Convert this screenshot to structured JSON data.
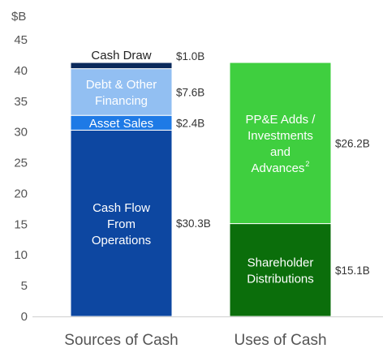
{
  "chart_data": {
    "type": "bar",
    "stacked": true,
    "unit_label": "$B",
    "ylim": [
      0,
      45
    ],
    "yticks": [
      0,
      5,
      10,
      15,
      20,
      25,
      30,
      35,
      40,
      45
    ],
    "grid": false,
    "categories": [
      "Sources of Cash",
      "Uses of Cash"
    ],
    "stacks": [
      {
        "category": "Sources of Cash",
        "segments": [
          {
            "label": [
              "Cash Flow",
              "From",
              "Operations"
            ],
            "value": 30.3,
            "value_label": "$30.3B",
            "color": "#0d47a1",
            "text_color": "#ffffff"
          },
          {
            "label": [
              "Asset Sales"
            ],
            "value": 2.4,
            "value_label": "$2.4B",
            "color": "#1e7ae6",
            "text_color": "#ffffff"
          },
          {
            "label": [
              "Debt & Other",
              "Financing"
            ],
            "value": 7.6,
            "value_label": "$7.6B",
            "color": "#92bff2",
            "text_color": "#ffffff"
          },
          {
            "label": [
              "Cash Draw"
            ],
            "value": 1.0,
            "value_label": "$1.0B",
            "color": "#0b2a5c",
            "text_color": "#222222"
          }
        ]
      },
      {
        "category": "Uses of Cash",
        "segments": [
          {
            "label": [
              "Shareholder",
              "Distributions"
            ],
            "value": 15.1,
            "value_label": "$15.1B",
            "color": "#0b6e0b",
            "text_color": "#ffffff"
          },
          {
            "label": [
              "PP&E Adds /",
              "Investments",
              "and",
              "Advances"
            ],
            "superscript": "2",
            "value": 26.2,
            "value_label": "$26.2B",
            "color": "#3fcf3f",
            "text_color": "#ffffff"
          }
        ]
      }
    ]
  }
}
